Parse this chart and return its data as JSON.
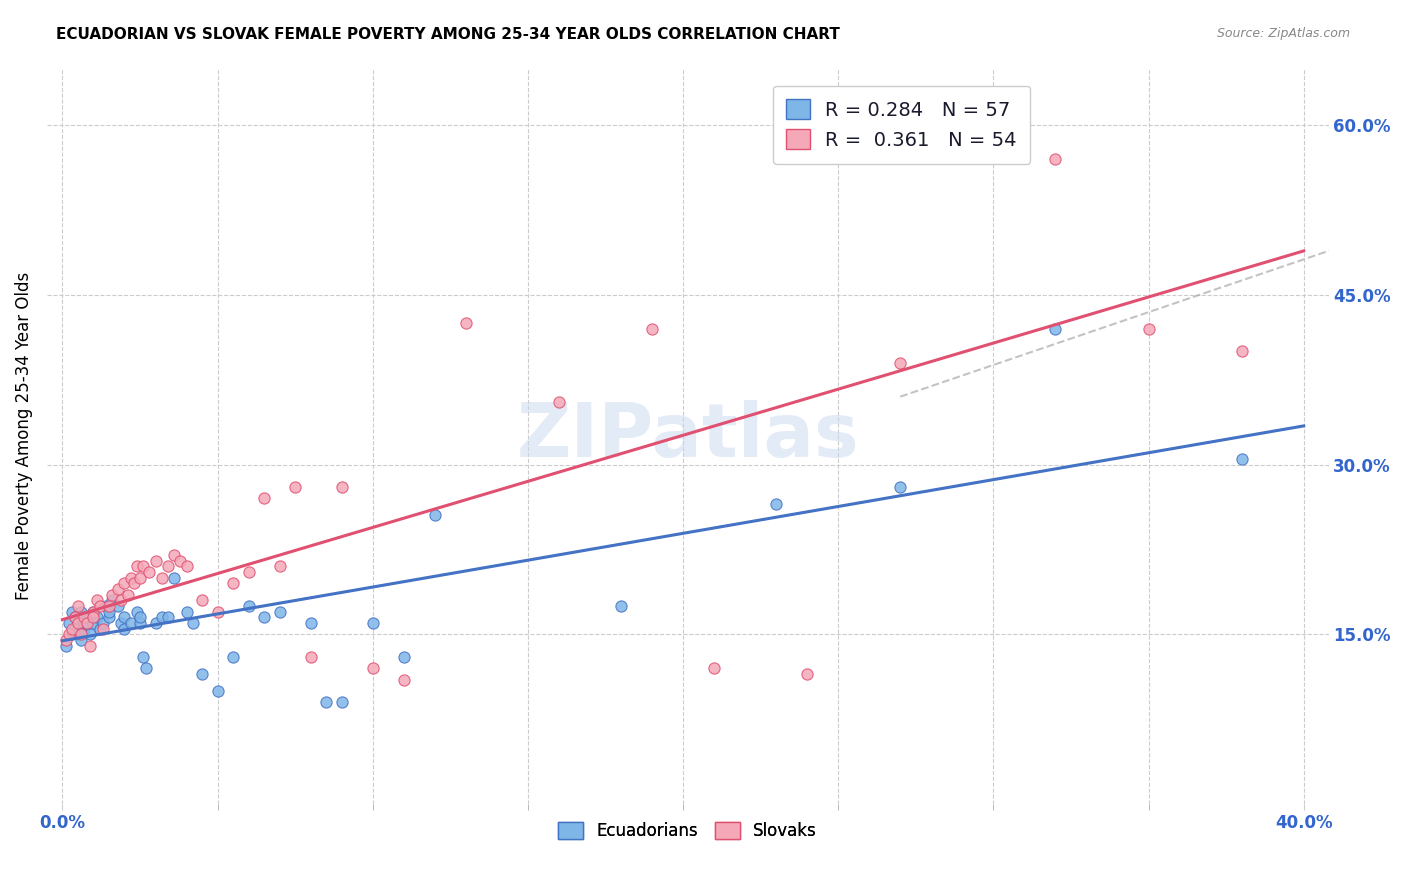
{
  "title": "ECUADORIAN VS SLOVAK FEMALE POVERTY AMONG 25-34 YEAR OLDS CORRELATION CHART",
  "source": "Source: ZipAtlas.com",
  "ylabel": "Female Poverty Among 25-34 Year Olds",
  "xlim": [
    0.0,
    0.4
  ],
  "ylim": [
    0.0,
    0.65
  ],
  "ytick_positions": [
    0.15,
    0.3,
    0.45,
    0.6
  ],
  "ytick_labels": [
    "15.0%",
    "30.0%",
    "45.0%",
    "60.0%"
  ],
  "ecuador_color": "#7eb6e8",
  "ecuador_color_dark": "#4472c4",
  "slovak_color": "#f4a8b8",
  "slovak_color_dark": "#e05070",
  "ecuador_R": 0.284,
  "ecuador_N": 57,
  "slovak_R": 0.361,
  "slovak_N": 54,
  "watermark": "ZIPatlas",
  "ecuador_scatter_x": [
    0.001,
    0.002,
    0.003,
    0.003,
    0.004,
    0.004,
    0.005,
    0.005,
    0.006,
    0.006,
    0.007,
    0.007,
    0.008,
    0.008,
    0.009,
    0.01,
    0.01,
    0.011,
    0.012,
    0.013,
    0.014,
    0.015,
    0.015,
    0.016,
    0.018,
    0.019,
    0.02,
    0.02,
    0.022,
    0.024,
    0.025,
    0.025,
    0.026,
    0.027,
    0.03,
    0.032,
    0.034,
    0.036,
    0.04,
    0.042,
    0.045,
    0.05,
    0.055,
    0.06,
    0.065,
    0.07,
    0.08,
    0.085,
    0.09,
    0.1,
    0.11,
    0.12,
    0.18,
    0.23,
    0.27,
    0.32,
    0.38
  ],
  "ecuador_scatter_y": [
    0.14,
    0.16,
    0.15,
    0.17,
    0.155,
    0.165,
    0.15,
    0.16,
    0.145,
    0.17,
    0.155,
    0.16,
    0.16,
    0.165,
    0.15,
    0.16,
    0.17,
    0.165,
    0.155,
    0.16,
    0.175,
    0.165,
    0.17,
    0.18,
    0.175,
    0.16,
    0.155,
    0.165,
    0.16,
    0.17,
    0.16,
    0.165,
    0.13,
    0.12,
    0.16,
    0.165,
    0.165,
    0.2,
    0.17,
    0.16,
    0.115,
    0.1,
    0.13,
    0.175,
    0.165,
    0.17,
    0.16,
    0.09,
    0.09,
    0.16,
    0.13,
    0.255,
    0.175,
    0.265,
    0.28,
    0.42,
    0.305
  ],
  "slovak_scatter_x": [
    0.001,
    0.002,
    0.003,
    0.004,
    0.005,
    0.005,
    0.006,
    0.007,
    0.008,
    0.009,
    0.01,
    0.01,
    0.011,
    0.012,
    0.013,
    0.015,
    0.016,
    0.018,
    0.019,
    0.02,
    0.021,
    0.022,
    0.023,
    0.024,
    0.025,
    0.026,
    0.028,
    0.03,
    0.032,
    0.034,
    0.036,
    0.038,
    0.04,
    0.045,
    0.05,
    0.055,
    0.06,
    0.065,
    0.07,
    0.075,
    0.08,
    0.09,
    0.1,
    0.11,
    0.13,
    0.16,
    0.19,
    0.21,
    0.24,
    0.27,
    0.3,
    0.32,
    0.35,
    0.38
  ],
  "slovak_scatter_y": [
    0.145,
    0.15,
    0.155,
    0.165,
    0.16,
    0.175,
    0.15,
    0.165,
    0.16,
    0.14,
    0.17,
    0.165,
    0.18,
    0.175,
    0.155,
    0.175,
    0.185,
    0.19,
    0.18,
    0.195,
    0.185,
    0.2,
    0.195,
    0.21,
    0.2,
    0.21,
    0.205,
    0.215,
    0.2,
    0.21,
    0.22,
    0.215,
    0.21,
    0.18,
    0.17,
    0.195,
    0.205,
    0.27,
    0.21,
    0.28,
    0.13,
    0.28,
    0.12,
    0.11,
    0.425,
    0.355,
    0.42,
    0.12,
    0.115,
    0.39,
    0.62,
    0.57,
    0.42,
    0.4
  ]
}
